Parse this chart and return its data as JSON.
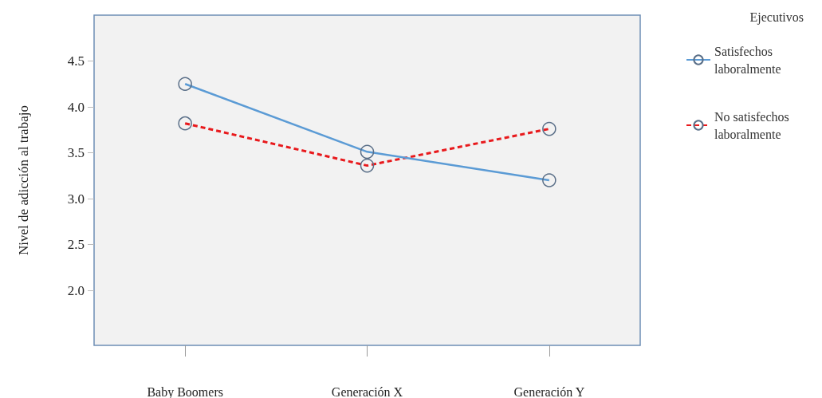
{
  "chart_data": {
    "type": "line",
    "ylabel": "Nivel de adicción al trabajo",
    "legend_title": "Ejecutivos",
    "categories": [
      "Baby Boomers",
      "Generación X",
      "Generación Y"
    ],
    "series": [
      {
        "name": "Satisfechos laboralmente",
        "color": "#5b9bd5",
        "line_style": "solid",
        "values": [
          4.25,
          3.51,
          3.2
        ]
      },
      {
        "name": "No satisfechos laboralmente",
        "color": "#e8191c",
        "line_style": "dashed",
        "values": [
          3.82,
          3.36,
          3.76
        ]
      }
    ],
    "ylim": [
      1.4,
      5.0
    ],
    "yticks": [
      {
        "value": 2.0,
        "label": "2.0"
      },
      {
        "value": 2.5,
        "label": "2.5"
      },
      {
        "value": 3.0,
        "label": "3.0"
      },
      {
        "value": 3.5,
        "label": "3.5"
      },
      {
        "value": 4.0,
        "label": "4.0"
      },
      {
        "value": 4.5,
        "label": "4.5"
      }
    ],
    "grid": false,
    "legend": "right",
    "marker": "circle"
  }
}
